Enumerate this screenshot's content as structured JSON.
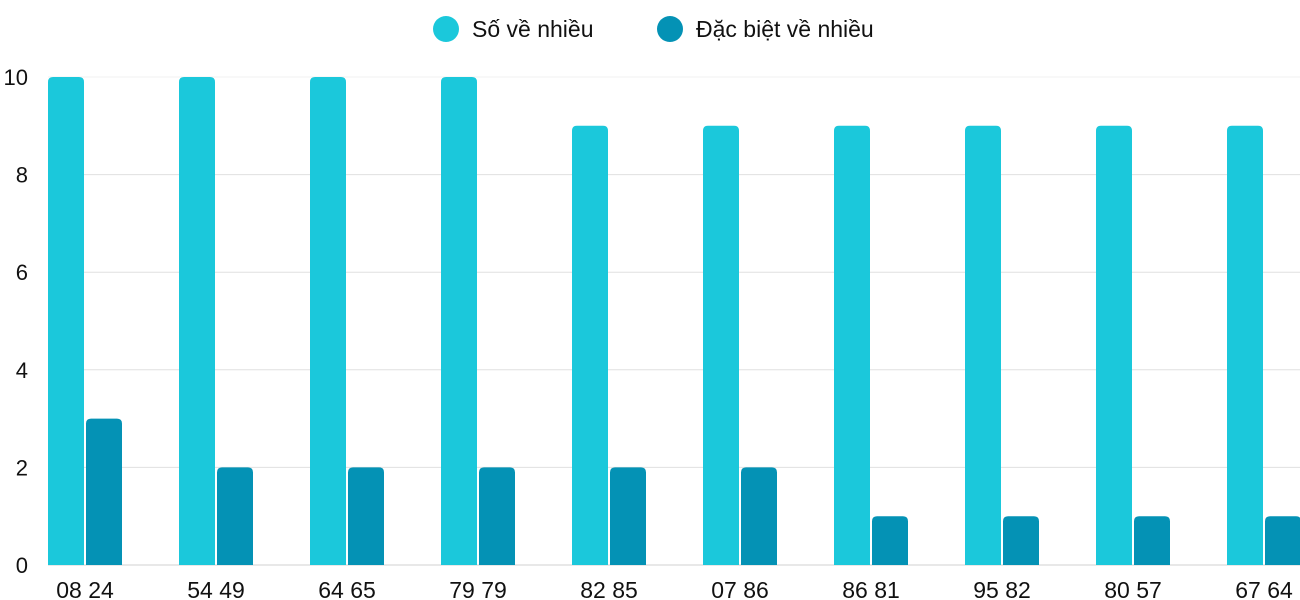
{
  "chart_data": {
    "type": "bar",
    "categories": [
      "08 24",
      "54 49",
      "64 65",
      "79 79",
      "82 85",
      "07 86",
      "86 81",
      "95 82",
      "80 57",
      "67 64"
    ],
    "series": [
      {
        "name": "Số về nhiều",
        "color": "#1BC8DB",
        "values": [
          10,
          10,
          10,
          10,
          9,
          9,
          9,
          9,
          9,
          9
        ]
      },
      {
        "name": "Đặc biệt về nhiều",
        "color": "#0492B5",
        "values": [
          3,
          2,
          2,
          2,
          2,
          2,
          1,
          1,
          1,
          1
        ]
      }
    ],
    "yticks": [
      0,
      2,
      4,
      6,
      8,
      10
    ],
    "ylim": [
      0,
      10
    ],
    "grid": true,
    "legend": "top-center",
    "title": "",
    "xlabel": "",
    "ylabel": ""
  }
}
